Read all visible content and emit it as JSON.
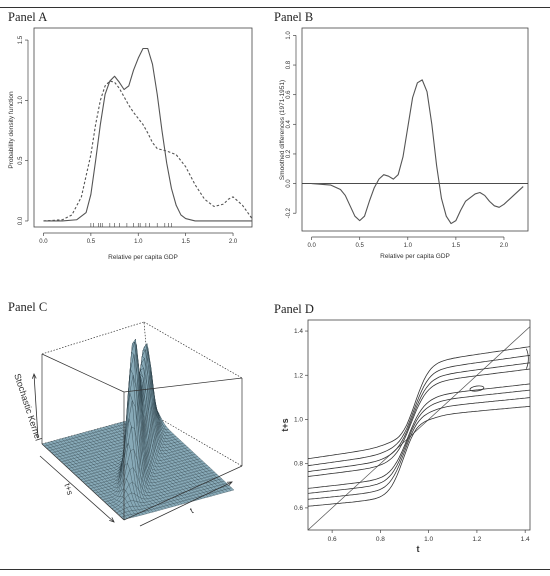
{
  "panels": {
    "a": {
      "label": "Panel A"
    },
    "b": {
      "label": "Panel B"
    },
    "c": {
      "label": "Panel C"
    },
    "d": {
      "label": "Panel D"
    }
  },
  "colors": {
    "line": "#555555",
    "surface": "#87a9b7",
    "surface_mesh": "#23343c",
    "frame": "#333333"
  },
  "chart_data": [
    {
      "type": "line",
      "panel": "Panel A",
      "xlabel": "Relative per capita GDP",
      "ylabel": "Probability density function",
      "xlim": [
        -0.1,
        2.2
      ],
      "ylim": [
        -0.05,
        1.6
      ],
      "xticks": [
        0.0,
        0.5,
        1.0,
        1.5,
        2.0
      ],
      "yticks": [
        0.0,
        0.5,
        1.0,
        1.5
      ],
      "series": [
        {
          "style": "solid",
          "x": [
            0.0,
            0.2,
            0.35,
            0.45,
            0.5,
            0.55,
            0.6,
            0.65,
            0.7,
            0.75,
            0.8,
            0.85,
            0.9,
            0.95,
            1.0,
            1.05,
            1.1,
            1.15,
            1.2,
            1.25,
            1.3,
            1.35,
            1.4,
            1.45,
            1.5,
            1.6,
            1.8,
            2.0,
            2.2
          ],
          "y": [
            0.0,
            0.0,
            0.01,
            0.07,
            0.22,
            0.5,
            0.8,
            1.05,
            1.16,
            1.2,
            1.15,
            1.09,
            1.12,
            1.25,
            1.35,
            1.43,
            1.43,
            1.3,
            1.05,
            0.75,
            0.48,
            0.27,
            0.13,
            0.05,
            0.02,
            0.0,
            0.0,
            0.0,
            0.0
          ]
        },
        {
          "style": "dashed",
          "x": [
            0.0,
            0.2,
            0.3,
            0.4,
            0.5,
            0.55,
            0.6,
            0.65,
            0.7,
            0.75,
            0.8,
            0.85,
            0.9,
            0.95,
            1.0,
            1.05,
            1.1,
            1.15,
            1.2,
            1.3,
            1.4,
            1.5,
            1.6,
            1.7,
            1.8,
            1.9,
            1.95,
            2.0,
            2.1,
            2.2
          ],
          "y": [
            0.0,
            0.01,
            0.05,
            0.2,
            0.55,
            0.8,
            1.0,
            1.12,
            1.16,
            1.15,
            1.1,
            1.03,
            0.96,
            0.9,
            0.85,
            0.8,
            0.73,
            0.65,
            0.6,
            0.58,
            0.55,
            0.45,
            0.3,
            0.18,
            0.12,
            0.14,
            0.18,
            0.2,
            0.13,
            0.02
          ]
        }
      ],
      "rug": [
        0.5,
        0.53,
        0.58,
        0.6,
        0.62,
        0.7,
        0.75,
        0.8,
        0.88,
        0.95,
        1.0,
        1.02,
        1.08,
        1.12,
        1.2,
        1.28,
        1.32,
        1.35
      ]
    },
    {
      "type": "line",
      "panel": "Panel B",
      "xlabel": "Relative per capita GDP",
      "ylabel": "Smoothed differences (1971-1951)",
      "xlim": [
        -0.1,
        2.25
      ],
      "ylim": [
        -0.32,
        1.05
      ],
      "xticks": [
        0.0,
        0.5,
        1.0,
        1.5,
        2.0
      ],
      "yticks": [
        -0.2,
        0.0,
        0.2,
        0.4,
        0.6,
        0.8,
        1.0
      ],
      "hline": 0,
      "series": [
        {
          "style": "solid",
          "x": [
            0.0,
            0.2,
            0.3,
            0.35,
            0.4,
            0.45,
            0.5,
            0.55,
            0.6,
            0.65,
            0.7,
            0.75,
            0.8,
            0.85,
            0.9,
            0.95,
            1.0,
            1.05,
            1.1,
            1.15,
            1.2,
            1.25,
            1.3,
            1.35,
            1.4,
            1.45,
            1.5,
            1.55,
            1.6,
            1.7,
            1.75,
            1.8,
            1.85,
            1.9,
            1.95,
            2.0,
            2.1,
            2.2
          ],
          "y": [
            0.0,
            -0.01,
            -0.04,
            -0.08,
            -0.15,
            -0.22,
            -0.25,
            -0.22,
            -0.12,
            -0.03,
            0.03,
            0.06,
            0.05,
            0.03,
            0.06,
            0.18,
            0.38,
            0.58,
            0.68,
            0.7,
            0.62,
            0.4,
            0.12,
            -0.1,
            -0.22,
            -0.27,
            -0.25,
            -0.18,
            -0.12,
            -0.07,
            -0.06,
            -0.08,
            -0.12,
            -0.15,
            -0.16,
            -0.14,
            -0.08,
            -0.02
          ]
        }
      ]
    },
    {
      "type": "surface",
      "panel": "Panel C",
      "zlabel": "Stochastic Kernel",
      "xlabel": "t+s",
      "ylabel": "t"
    },
    {
      "type": "contour",
      "panel": "Panel D",
      "xlabel": "t",
      "ylabel": "t+s",
      "xlim": [
        0.5,
        1.42
      ],
      "ylim": [
        0.5,
        1.45
      ],
      "xticks": [
        0.6,
        0.8,
        1.0,
        1.2,
        1.4
      ],
      "yticks": [
        0.6,
        0.8,
        1.0,
        1.2,
        1.4
      ],
      "diagonal": true
    }
  ]
}
